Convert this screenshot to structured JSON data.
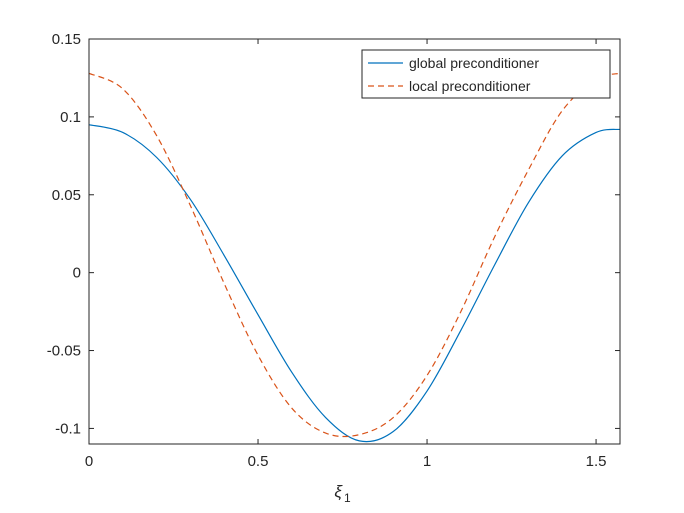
{
  "chart_data": {
    "type": "line",
    "title": "",
    "xlabel_main": "ξ",
    "xlabel_sub": "1",
    "ylabel": "",
    "xlim": [
      0,
      1.5708
    ],
    "ylim": [
      -0.11,
      0.15
    ],
    "xticks": [
      0,
      0.5,
      1,
      1.5
    ],
    "xtick_labels": [
      "0",
      "0.5",
      "1",
      "1.5"
    ],
    "yticks": [
      -0.1,
      -0.05,
      0,
      0.05,
      0.1,
      0.15
    ],
    "ytick_labels": [
      "-0.1",
      "-0.05",
      "0",
      "0.05",
      "0.1",
      "0.15"
    ],
    "grid": false,
    "legend_position": "top-right",
    "x": [
      0,
      0.1,
      0.2,
      0.3,
      0.4,
      0.5,
      0.6,
      0.7,
      0.8,
      0.9,
      1.0,
      1.1,
      1.2,
      1.3,
      1.4,
      1.5,
      1.5708
    ],
    "series": [
      {
        "name": "global preconditioner",
        "color": "#0072bd",
        "dash": "solid",
        "values": [
          0.095,
          0.09,
          0.074,
          0.047,
          0.011,
          -0.027,
          -0.064,
          -0.093,
          -0.108,
          -0.102,
          -0.076,
          -0.037,
          0.005,
          0.045,
          0.075,
          0.09,
          0.092
        ]
      },
      {
        "name": "local preconditioner",
        "color": "#d95319",
        "dash": "dashed",
        "values": [
          0.128,
          0.118,
          0.088,
          0.043,
          -0.007,
          -0.053,
          -0.087,
          -0.103,
          -0.104,
          -0.093,
          -0.066,
          -0.025,
          0.023,
          0.066,
          0.104,
          0.124,
          0.128
        ]
      }
    ]
  }
}
